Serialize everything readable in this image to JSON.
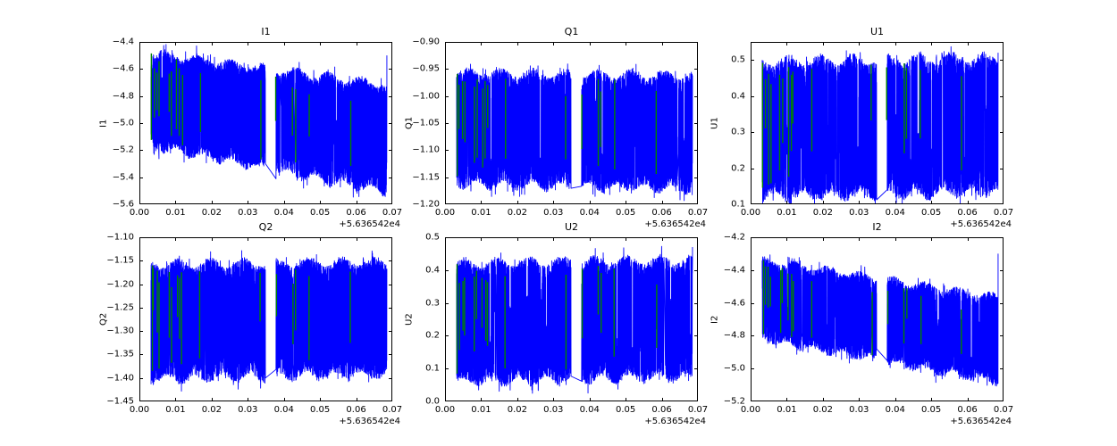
{
  "figure": {
    "background": "#ffffff",
    "signal_color": "#0000ff",
    "flag_color": "#008000",
    "frame_color": "#000000"
  },
  "chart_data": [
    {
      "type": "line",
      "title": "I1",
      "ylabel": "I1",
      "xlabel": "",
      "xlim": [
        0,
        0.07
      ],
      "x_offset_label": "+5.636542e4",
      "x_tick_values": [
        0,
        0.01,
        0.02,
        0.03,
        0.04,
        0.05,
        0.06,
        0.07
      ],
      "x_tick_labels": [
        "0.00",
        "0.01",
        "0.02",
        "0.03",
        "0.04",
        "0.05",
        "0.06",
        "0.07"
      ],
      "ylim": [
        -5.6,
        -4.4
      ],
      "y_tick_values": [
        -5.6,
        -5.4,
        -5.2,
        -5.0,
        -4.8,
        -4.6,
        -4.4
      ],
      "y_tick_labels": [
        "−5.6",
        "−5.4",
        "−5.2",
        "−5.0",
        "−4.8",
        "−4.6",
        "−4.4"
      ],
      "grid": false,
      "legend": null,
      "series": [
        {
          "name": "signal",
          "color": "#0000ff",
          "x_start": 0.0032,
          "x_end": 0.0685,
          "gap": [
            0.0349,
            0.0378
          ],
          "envelope_top": [
            -4.47,
            -4.71
          ],
          "envelope_bottom": [
            -5.18,
            -5.52
          ],
          "end_spike": -4.5,
          "dropout": 0.14
        },
        {
          "name": "flagged-samples",
          "color": "#008000",
          "x_positions": [
            0.0034,
            0.004,
            0.005,
            0.0056,
            0.0082,
            0.0088,
            0.0104,
            0.0112,
            0.0118,
            0.0168,
            0.0335,
            0.0378,
            0.0425,
            0.0432,
            0.047,
            0.0585
          ]
        }
      ]
    },
    {
      "type": "line",
      "title": "Q1",
      "ylabel": "Q1",
      "xlabel": "",
      "xlim": [
        0,
        0.07
      ],
      "x_offset_label": "+5.636542e4",
      "x_tick_values": [
        0,
        0.01,
        0.02,
        0.03,
        0.04,
        0.05,
        0.06,
        0.07
      ],
      "x_tick_labels": [
        "0.00",
        "0.01",
        "0.02",
        "0.03",
        "0.04",
        "0.05",
        "0.06",
        "0.07"
      ],
      "ylim": [
        -1.2,
        -0.9
      ],
      "y_tick_values": [
        -1.2,
        -1.15,
        -1.1,
        -1.05,
        -1.0,
        -0.95,
        -0.9
      ],
      "y_tick_labels": [
        "−1.20",
        "−1.15",
        "−1.10",
        "−1.05",
        "−1.00",
        "−0.95",
        "−0.90"
      ],
      "grid": false,
      "legend": null,
      "series": [
        {
          "name": "signal",
          "color": "#0000ff",
          "x_start": 0.0032,
          "x_end": 0.0685,
          "gap": [
            0.0349,
            0.0378
          ],
          "envelope_top": [
            -0.955,
            -0.96
          ],
          "envelope_bottom": [
            -1.165,
            -1.175
          ],
          "end_spike": null,
          "dropout": 0.14
        },
        {
          "name": "flagged-samples",
          "color": "#008000",
          "x_positions": [
            0.0034,
            0.004,
            0.005,
            0.0056,
            0.0082,
            0.0088,
            0.0104,
            0.0112,
            0.0118,
            0.0168,
            0.0335,
            0.0378,
            0.0425,
            0.0432,
            0.047,
            0.0585
          ]
        }
      ]
    },
    {
      "type": "line",
      "title": "U1",
      "ylabel": "U1",
      "xlabel": "",
      "xlim": [
        0,
        0.07
      ],
      "x_offset_label": "+5.636542e4",
      "x_tick_values": [
        0,
        0.01,
        0.02,
        0.03,
        0.04,
        0.05,
        0.06,
        0.07
      ],
      "x_tick_labels": [
        "0.00",
        "0.01",
        "0.02",
        "0.03",
        "0.04",
        "0.05",
        "0.06",
        "0.07"
      ],
      "ylim": [
        0.1,
        0.55
      ],
      "y_tick_values": [
        0.1,
        0.2,
        0.3,
        0.4,
        0.5
      ],
      "y_tick_labels": [
        "0.1",
        "0.2",
        "0.3",
        "0.4",
        "0.5"
      ],
      "grid": false,
      "legend": null,
      "series": [
        {
          "name": "signal",
          "color": "#0000ff",
          "x_start": 0.0032,
          "x_end": 0.0685,
          "gap": [
            0.0349,
            0.0378
          ],
          "envelope_top": [
            0.5,
            0.51
          ],
          "envelope_bottom": [
            0.115,
            0.13
          ],
          "end_spike": 0.52,
          "dropout": 0.55
        },
        {
          "name": "flagged-samples",
          "color": "#008000",
          "x_positions": [
            0.0034,
            0.004,
            0.005,
            0.0056,
            0.0082,
            0.0088,
            0.0104,
            0.0112,
            0.0118,
            0.0168,
            0.0335,
            0.0378,
            0.0425,
            0.0432,
            0.047,
            0.0585
          ]
        }
      ]
    },
    {
      "type": "line",
      "title": "Q2",
      "ylabel": "Q2",
      "xlabel": "",
      "xlim": [
        0,
        0.07
      ],
      "x_offset_label": "+5.636542e4",
      "x_tick_values": [
        0,
        0.01,
        0.02,
        0.03,
        0.04,
        0.05,
        0.06,
        0.07
      ],
      "x_tick_labels": [
        "0.00",
        "0.01",
        "0.02",
        "0.03",
        "0.04",
        "0.05",
        "0.06",
        "0.07"
      ],
      "ylim": [
        -1.45,
        -1.1
      ],
      "y_tick_values": [
        -1.45,
        -1.4,
        -1.35,
        -1.3,
        -1.25,
        -1.2,
        -1.15,
        -1.1
      ],
      "y_tick_labels": [
        "−1.45",
        "−1.40",
        "−1.35",
        "−1.30",
        "−1.25",
        "−1.20",
        "−1.15",
        "−1.10"
      ],
      "grid": false,
      "legend": null,
      "series": [
        {
          "name": "signal",
          "color": "#0000ff",
          "x_start": 0.0032,
          "x_end": 0.0685,
          "gap": [
            0.0349,
            0.0378
          ],
          "envelope_top": [
            -1.155,
            -1.15
          ],
          "envelope_bottom": [
            -1.405,
            -1.395
          ],
          "end_spike": null,
          "dropout": 0.14
        },
        {
          "name": "flagged-samples",
          "color": "#008000",
          "x_positions": [
            0.0034,
            0.004,
            0.005,
            0.0056,
            0.0082,
            0.0088,
            0.0104,
            0.0112,
            0.0118,
            0.0168,
            0.0335,
            0.0378,
            0.0425,
            0.0432,
            0.047,
            0.0585
          ]
        }
      ]
    },
    {
      "type": "line",
      "title": "U2",
      "ylabel": "U2",
      "xlabel": "",
      "xlim": [
        0,
        0.07
      ],
      "x_offset_label": "+5.636542e4",
      "x_tick_values": [
        0,
        0.01,
        0.02,
        0.03,
        0.04,
        0.05,
        0.06,
        0.07
      ],
      "x_tick_labels": [
        "0.00",
        "0.01",
        "0.02",
        "0.03",
        "0.04",
        "0.05",
        "0.06",
        "0.07"
      ],
      "ylim": [
        0.0,
        0.5
      ],
      "y_tick_values": [
        0.0,
        0.1,
        0.2,
        0.3,
        0.4,
        0.5
      ],
      "y_tick_labels": [
        "0.0",
        "0.1",
        "0.2",
        "0.3",
        "0.4",
        "0.5"
      ],
      "grid": false,
      "legend": null,
      "series": [
        {
          "name": "signal",
          "color": "#0000ff",
          "x_start": 0.0032,
          "x_end": 0.0685,
          "gap": [
            0.0349,
            0.0378
          ],
          "envelope_top": [
            0.425,
            0.435
          ],
          "envelope_bottom": [
            0.055,
            0.07
          ],
          "end_spike": 0.47,
          "dropout": 0.5
        },
        {
          "name": "flagged-samples",
          "color": "#008000",
          "x_positions": [
            0.0034,
            0.004,
            0.005,
            0.0056,
            0.0082,
            0.0088,
            0.0104,
            0.0112,
            0.0118,
            0.0168,
            0.0335,
            0.0378,
            0.0425,
            0.0432,
            0.047,
            0.0585
          ]
        }
      ]
    },
    {
      "type": "line",
      "title": "I2",
      "ylabel": "I2",
      "xlabel": "",
      "xlim": [
        0,
        0.07
      ],
      "x_offset_label": "+5.636542e4",
      "x_tick_values": [
        0,
        0.01,
        0.02,
        0.03,
        0.04,
        0.05,
        0.06,
        0.07
      ],
      "x_tick_labels": [
        "0.00",
        "0.01",
        "0.02",
        "0.03",
        "0.04",
        "0.05",
        "0.06",
        "0.07"
      ],
      "ylim": [
        -5.2,
        -4.2
      ],
      "y_tick_values": [
        -5.2,
        -5.0,
        -4.8,
        -4.6,
        -4.4,
        -4.2
      ],
      "y_tick_labels": [
        "−5.2",
        "−5.0",
        "−4.8",
        "−4.6",
        "−4.4",
        "−4.2"
      ],
      "grid": false,
      "legend": null,
      "series": [
        {
          "name": "signal",
          "color": "#0000ff",
          "x_start": 0.0032,
          "x_end": 0.0685,
          "gap": [
            0.0349,
            0.0378
          ],
          "envelope_top": [
            -4.33,
            -4.56
          ],
          "envelope_bottom": [
            -4.83,
            -5.09
          ],
          "end_spike": -4.3,
          "dropout": 0.16
        },
        {
          "name": "flagged-samples",
          "color": "#008000",
          "x_positions": [
            0.0034,
            0.004,
            0.005,
            0.0056,
            0.0082,
            0.0088,
            0.0104,
            0.0112,
            0.0118,
            0.0168,
            0.0335,
            0.0378,
            0.0425,
            0.0432,
            0.047,
            0.0585
          ]
        }
      ]
    }
  ]
}
